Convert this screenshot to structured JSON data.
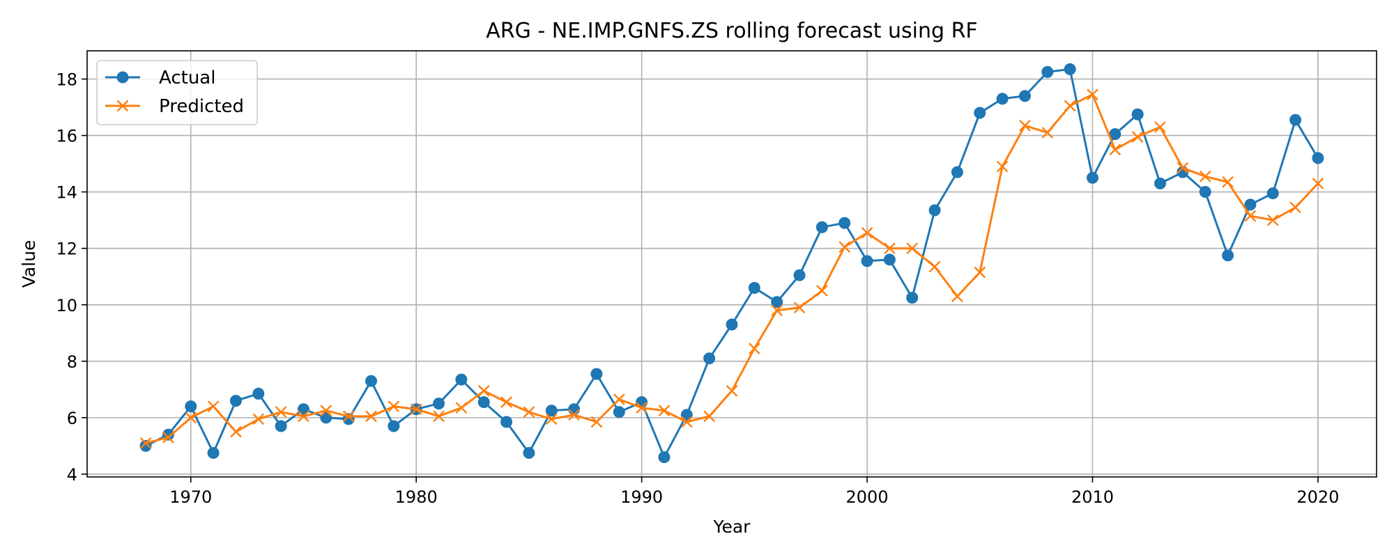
{
  "chart_data": {
    "type": "line",
    "title": "ARG - NE.IMP.GNFS.ZS rolling forecast using RF",
    "xlabel": "Year",
    "ylabel": "Value",
    "xlim": [
      1965.4,
      2022.6
    ],
    "ylim": [
      3.9,
      19.0
    ],
    "xticks": [
      1970,
      1980,
      1990,
      2000,
      2010,
      2020
    ],
    "yticks": [
      4,
      6,
      8,
      10,
      12,
      14,
      16,
      18
    ],
    "grid": true,
    "legend_position": "upper-left",
    "x": [
      1968,
      1969,
      1970,
      1971,
      1972,
      1973,
      1974,
      1975,
      1976,
      1977,
      1978,
      1979,
      1980,
      1981,
      1982,
      1983,
      1984,
      1985,
      1986,
      1987,
      1988,
      1989,
      1990,
      1991,
      1992,
      1993,
      1994,
      1995,
      1996,
      1997,
      1998,
      1999,
      2000,
      2001,
      2002,
      2003,
      2004,
      2005,
      2006,
      2007,
      2008,
      2009,
      2010,
      2011,
      2012,
      2013,
      2014,
      2015,
      2016,
      2017,
      2018,
      2019,
      2020
    ],
    "series": [
      {
        "name": "Actual",
        "color": "#1f77b4",
        "marker": "circle",
        "values": [
          5.0,
          5.4,
          6.4,
          4.75,
          6.6,
          6.85,
          5.7,
          6.3,
          6.0,
          5.95,
          7.3,
          5.7,
          6.3,
          6.5,
          7.35,
          6.55,
          5.85,
          4.75,
          6.25,
          6.3,
          7.55,
          6.2,
          6.55,
          4.6,
          6.1,
          8.1,
          9.3,
          10.6,
          10.1,
          11.05,
          12.75,
          12.9,
          11.55,
          11.6,
          10.25,
          13.35,
          14.7,
          16.8,
          17.3,
          17.4,
          18.25,
          18.35,
          14.5,
          16.05,
          16.75,
          14.3,
          14.7,
          14.0,
          11.75,
          13.55,
          13.95,
          16.55,
          15.2
        ]
      },
      {
        "name": "Predicted",
        "color": "#ff7f0e",
        "marker": "x",
        "values": [
          5.1,
          5.3,
          6.0,
          6.4,
          5.5,
          5.95,
          6.2,
          6.05,
          6.25,
          6.05,
          6.05,
          6.4,
          6.3,
          6.05,
          6.35,
          6.95,
          6.55,
          6.2,
          5.95,
          6.1,
          5.85,
          6.65,
          6.35,
          6.25,
          5.85,
          6.05,
          6.95,
          8.45,
          9.8,
          9.9,
          10.5,
          12.05,
          12.55,
          12.0,
          12.0,
          11.35,
          10.3,
          11.15,
          14.9,
          16.35,
          16.1,
          17.05,
          17.45,
          15.5,
          15.95,
          16.3,
          14.85,
          14.55,
          14.35,
          13.15,
          13.0,
          13.45,
          14.3
        ]
      }
    ]
  }
}
